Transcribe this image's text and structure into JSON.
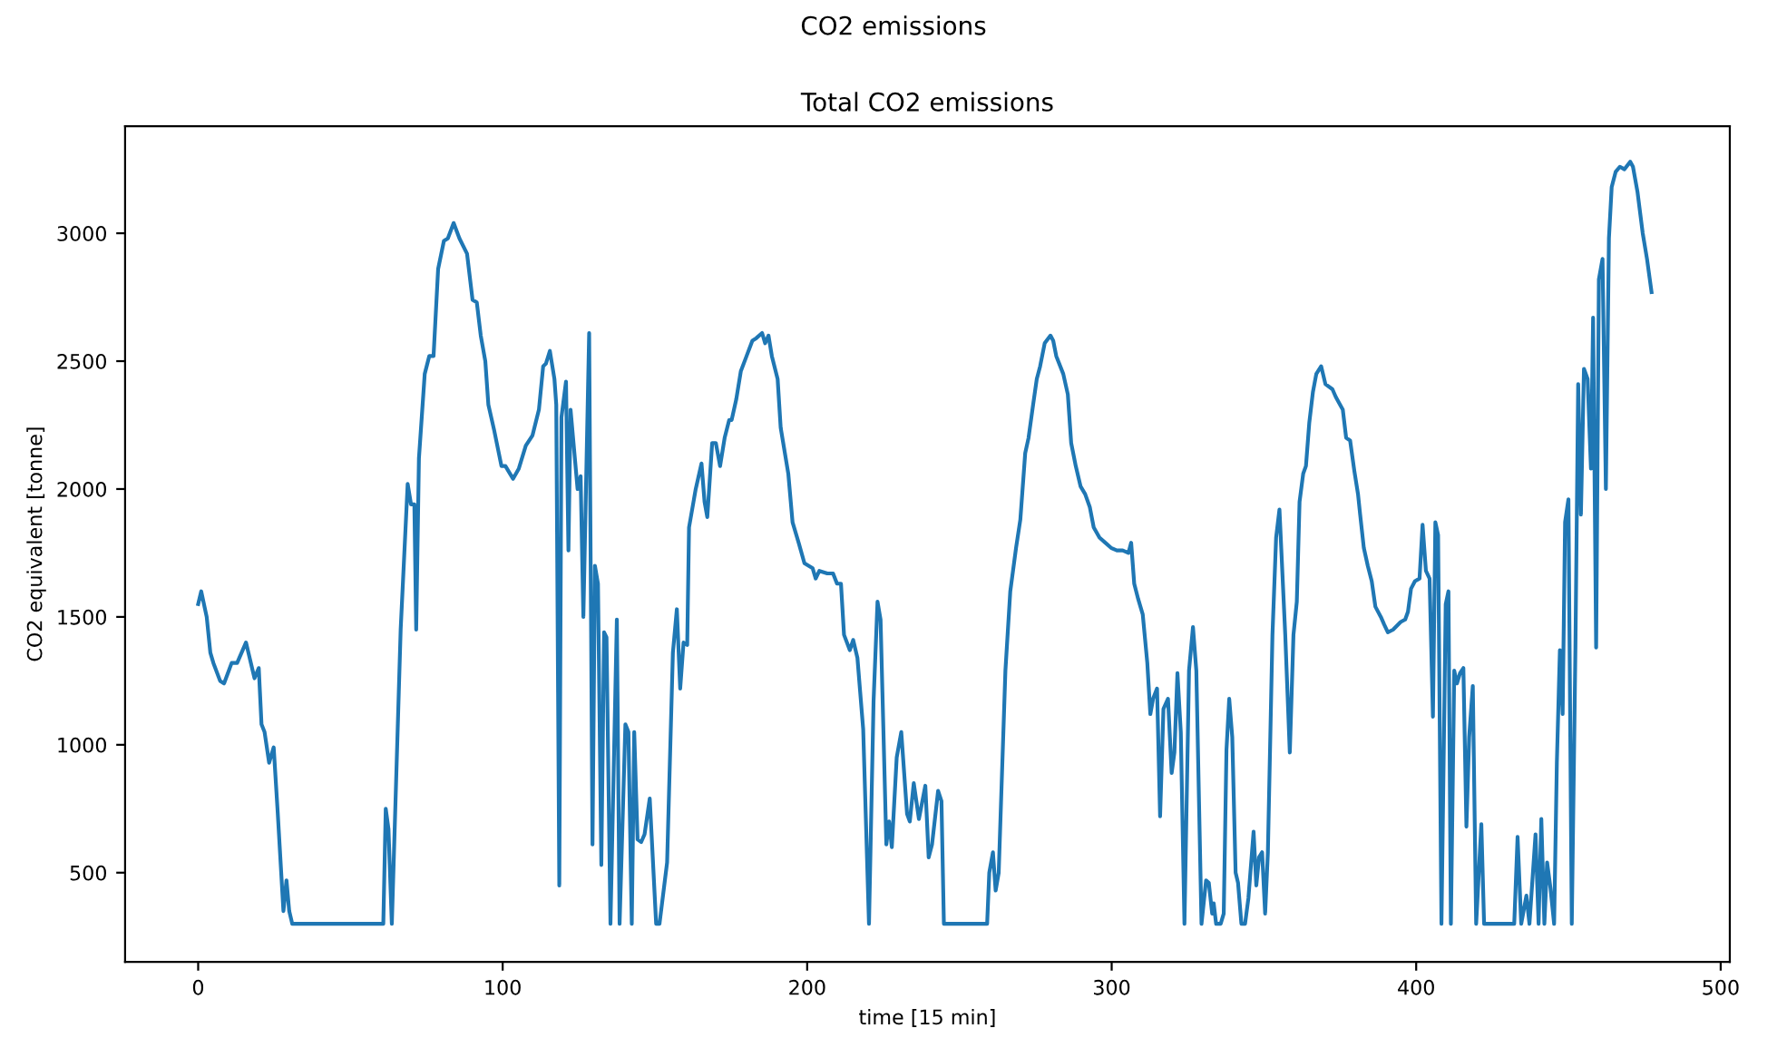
{
  "chart_data": {
    "type": "line",
    "title": "CO2 emissions",
    "subtitle": "Total CO2 emissions",
    "xlabel": "time [15 min]",
    "ylabel": "CO2 equivalent [tonne]",
    "xlim": [
      -24,
      503
    ],
    "ylim": [
      151.5,
      3418.5
    ],
    "xticks": [
      0,
      100,
      200,
      300,
      400,
      500
    ],
    "yticks": [
      500,
      1000,
      1500,
      2000,
      2500,
      3000
    ],
    "grid": false,
    "marker": "none",
    "line_style": "solid",
    "series": [
      {
        "color": "#1f77b4",
        "x": [
          0,
          1,
          2.8,
          4,
          5,
          7.2,
          8.5,
          11,
          12.8,
          15.7,
          18.5,
          19.9,
          20.8,
          21.8,
          23.3,
          24.8,
          26.1,
          28,
          29,
          29.9,
          30.9,
          60.8,
          61.6,
          62.5,
          63.6,
          66.5,
          68.8,
          69.9,
          71,
          71.6,
          72.5,
          74.4,
          75.9,
          77.3,
          78.8,
          80.7,
          82,
          83.9,
          85.8,
          88.3,
          90.1,
          91.5,
          92.8,
          94.3,
          95.3,
          97.2,
          99.6,
          100.9,
          103.4,
          105.3,
          107.6,
          109.8,
          111.9,
          113.3,
          114.2,
          115.5,
          117,
          117.6,
          118.6,
          119.3,
          120.8,
          121.6,
          122.3,
          124.6,
          125.6,
          126.5,
          128.4,
          129.5,
          130.3,
          131.3,
          132.4,
          133.3,
          134.1,
          135.4,
          137.5,
          138.4,
          140.3,
          141.3,
          142.4,
          143.2,
          144.3,
          145.5,
          146.6,
          148.3,
          150.4,
          151.5,
          154,
          155.9,
          157.2,
          158.3,
          159.4,
          160.6,
          161.2,
          163.4,
          165.3,
          166.3,
          167.2,
          168.8,
          170,
          171.4,
          172.9,
          174.4,
          175.2,
          176.7,
          178.2,
          180.1,
          182,
          183.3,
          185.2,
          186.2,
          187.3,
          188.4,
          190.3,
          191.3,
          193.8,
          195.2,
          197.2,
          199.1,
          201.8,
          202.8,
          204,
          206.6,
          208.5,
          209.8,
          211.1,
          212.1,
          214,
          215.1,
          216.5,
          218.4,
          220.3,
          221.8,
          223.1,
          224.1,
          226,
          226.9,
          227.8,
          229.4,
          230.9,
          232.8,
          233.7,
          235,
          236.7,
          238.8,
          239.9,
          241,
          243,
          244.1,
          244.9,
          259.1,
          259.8,
          261,
          261.9,
          262.9,
          265.1,
          266.7,
          268.6,
          270,
          271.6,
          272.7,
          274.2,
          275.4,
          276.5,
          278,
          279.9,
          280.8,
          281.8,
          284.1,
          285.6,
          286.7,
          288.2,
          289.8,
          291.3,
          292.8,
          294.1,
          296,
          297.9,
          299.8,
          301.7,
          303.6,
          305.5,
          306.4,
          307.4,
          308.7,
          310.2,
          311.7,
          312.7,
          313.6,
          314.9,
          315.9,
          317,
          318.5,
          319.7,
          320.6,
          321.6,
          322.7,
          323.9,
          325.4,
          326.7,
          327.8,
          329.5,
          331,
          331.9,
          333,
          333.5,
          334.3,
          335.8,
          336.8,
          337.7,
          338.6,
          339.6,
          340.7,
          341.5,
          342.6,
          343.8,
          344.9,
          346.6,
          347.5,
          348.4,
          349.4,
          350.4,
          351.3,
          352.8,
          354,
          355.1,
          357,
          358.5,
          359.7,
          360.8,
          361.7,
          362.9,
          363.8,
          364.9,
          366.1,
          367.2,
          368.8,
          370.2,
          372.5,
          373.6,
          375.9,
          377,
          378.3,
          379.7,
          380.9,
          381.6,
          382.8,
          384.1,
          385.4,
          386.6,
          388.4,
          389.5,
          390.7,
          392.4,
          394.9,
          396.4,
          397.3,
          398.3,
          399.6,
          401.1,
          402.1,
          403.2,
          404.4,
          405.5,
          406.3,
          407.2,
          408.3,
          409.7,
          410.6,
          411.4,
          412.5,
          413.4,
          414.4,
          415.5,
          416.5,
          417.4,
          418.6,
          419.7,
          421.4,
          422.3,
          432.2,
          433.3,
          434.5,
          436.2,
          437.2,
          439.2,
          440.2,
          441.1,
          442.1,
          443,
          444.1,
          445.3,
          446.2,
          447.2,
          448.1,
          448.9,
          450,
          451.1,
          452.3,
          453.2,
          454.1,
          455.1,
          456.3,
          457.4,
          458.1,
          459.1,
          460,
          461.2,
          462.3,
          463.3,
          464.2,
          465.5,
          466.9,
          468.4,
          470.3,
          471.2,
          472.7,
          474.4,
          475.8,
          477.3
        ],
        "values": [
          1550,
          1600,
          1500,
          1360,
          1320,
          1250,
          1240,
          1320,
          1320,
          1400,
          1260,
          1300,
          1080,
          1050,
          930,
          990,
          740,
          350,
          470,
          350,
          300,
          300,
          750,
          670,
          300,
          1450,
          2020,
          1940,
          1940,
          1450,
          2120,
          2450,
          2520,
          2520,
          2860,
          2970,
          2980,
          3040,
          2980,
          2920,
          2740,
          2730,
          2600,
          2500,
          2330,
          2230,
          2090,
          2090,
          2040,
          2080,
          2170,
          2210,
          2310,
          2480,
          2490,
          2540,
          2430,
          2330,
          450,
          2280,
          2420,
          1760,
          2310,
          2000,
          2050,
          1500,
          2610,
          610,
          1700,
          1630,
          530,
          1440,
          1420,
          300,
          1490,
          300,
          1080,
          1050,
          300,
          1050,
          630,
          620,
          650,
          790,
          300,
          300,
          540,
          1360,
          1530,
          1220,
          1400,
          1390,
          1850,
          2000,
          2100,
          1950,
          1890,
          2180,
          2180,
          2090,
          2200,
          2270,
          2270,
          2350,
          2460,
          2520,
          2580,
          2590,
          2610,
          2570,
          2600,
          2520,
          2430,
          2240,
          2060,
          1870,
          1790,
          1710,
          1690,
          1650,
          1680,
          1670,
          1670,
          1630,
          1630,
          1430,
          1370,
          1410,
          1340,
          1060,
          300,
          1170,
          1560,
          1490,
          610,
          700,
          600,
          950,
          1050,
          730,
          700,
          850,
          710,
          840,
          560,
          610,
          820,
          780,
          300,
          300,
          500,
          580,
          430,
          500,
          1290,
          1600,
          1770,
          1880,
          2140,
          2200,
          2330,
          2430,
          2480,
          2570,
          2600,
          2580,
          2520,
          2450,
          2370,
          2180,
          2090,
          2010,
          1980,
          1930,
          1850,
          1810,
          1790,
          1770,
          1760,
          1760,
          1750,
          1790,
          1630,
          1570,
          1510,
          1320,
          1120,
          1180,
          1220,
          720,
          1140,
          1180,
          890,
          970,
          1280,
          1050,
          300,
          1290,
          1460,
          1290,
          300,
          470,
          460,
          340,
          380,
          300,
          300,
          340,
          980,
          1180,
          1030,
          500,
          460,
          300,
          300,
          400,
          660,
          450,
          560,
          580,
          340,
          580,
          1430,
          1810,
          1920,
          1430,
          970,
          1430,
          1560,
          1950,
          2060,
          2090,
          2260,
          2380,
          2450,
          2480,
          2410,
          2390,
          2360,
          2310,
          2200,
          2190,
          2070,
          1980,
          1900,
          1770,
          1700,
          1640,
          1540,
          1500,
          1470,
          1440,
          1450,
          1480,
          1490,
          1520,
          1610,
          1640,
          1650,
          1860,
          1680,
          1650,
          1110,
          1870,
          1820,
          300,
          1550,
          1600,
          300,
          1290,
          1240,
          1280,
          1300,
          680,
          1030,
          1230,
          300,
          690,
          300,
          300,
          640,
          300,
          410,
          300,
          650,
          300,
          710,
          300,
          540,
          440,
          300,
          930,
          1370,
          1120,
          1870,
          1960,
          300,
          1380,
          2410,
          1900,
          2470,
          2430,
          2080,
          2670,
          1380,
          2820,
          2900,
          2000,
          2980,
          3180,
          3240,
          3260,
          3250,
          3280,
          3260,
          3160,
          3000,
          2900,
          2770
        ]
      }
    ]
  }
}
